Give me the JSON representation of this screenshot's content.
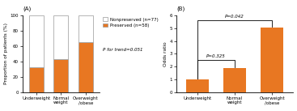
{
  "chart_data": [
    {
      "type": "bar",
      "title": "(A)",
      "stacked": true,
      "categories": [
        "Underweight",
        "Normal\nweight",
        "Overweight\n/obese"
      ],
      "series": [
        {
          "name": "Preserved (n=58)",
          "color": "#E87722",
          "values": [
            33,
            43,
            65
          ]
        },
        {
          "name": "Nonpreserved (n=77)",
          "color": "#FFFFFF",
          "values": [
            67,
            57,
            35
          ]
        }
      ],
      "y_label": "Proportion of patients (%)",
      "ylim": [
        0,
        100
      ],
      "yticks": [
        0,
        20,
        40,
        60,
        80,
        100
      ],
      "legend": "upper right",
      "annotations": [
        "P for trend=0.051"
      ]
    },
    {
      "type": "bar",
      "title": "(B)",
      "categories": [
        "Underweight",
        "Normal\nweight",
        "Overweight\n/obese"
      ],
      "values": [
        1.0,
        1.9,
        5.05
      ],
      "color": "#E87722",
      "y_label": "Odds ratio",
      "ylim": [
        0,
        6
      ],
      "yticks": [
        0,
        1,
        2,
        3,
        4,
        5,
        6
      ],
      "annotations": [
        "P=0.325",
        "P=0.042"
      ]
    }
  ]
}
